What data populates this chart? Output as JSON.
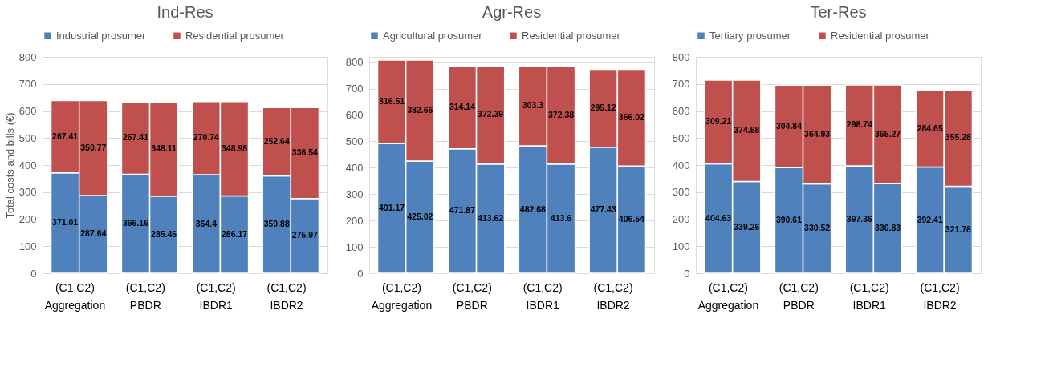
{
  "chart_data": [
    {
      "type": "bar",
      "stacked": true,
      "title": "Ind-Res",
      "ylabel": "Total costs and bills (€)",
      "categories": [
        "(C1,C2)\nAggregation",
        null,
        "(C1,C2)\nPBDR",
        null,
        "(C1,C2)\nIBDR1",
        null,
        "(C1,C2)\nIBDR2",
        null
      ],
      "series": [
        {
          "name": "Industrial prosumer",
          "color": "#4f81bd",
          "values": [
            371.01,
            287.64,
            366.16,
            285.46,
            364.4,
            286.17,
            359.88,
            275.97
          ]
        },
        {
          "name": "Residential prosumer",
          "color": "#c0504d",
          "values": [
            267.41,
            350.77,
            267.41,
            348.11,
            270.74,
            348.98,
            252.64,
            336.54
          ]
        }
      ],
      "ylim": [
        0,
        800
      ],
      "yticks": [
        0,
        100,
        200,
        300,
        400,
        500,
        600,
        700,
        800
      ],
      "grid": "y",
      "legend": "top",
      "data_labels": true
    },
    {
      "type": "bar",
      "stacked": true,
      "title": "Agr-Res",
      "categories": [
        "(C1,C2)\nAggregation",
        null,
        "(C1,C2)\nPBDR",
        null,
        "(C1,C2)\nIBDR1",
        null,
        "(C1,C2)\nIBDR2",
        null
      ],
      "series": [
        {
          "name": "Agricultural prosumer",
          "color": "#4f81bd",
          "values": [
            491.17,
            425.02,
            471.87,
            413.62,
            482.68,
            413.6,
            477.43,
            406.54
          ]
        },
        {
          "name": "Residential prosumer",
          "color": "#c0504d",
          "values": [
            316.51,
            382.66,
            314.14,
            372.39,
            303.3,
            372.38,
            295.12,
            366.02
          ]
        }
      ],
      "ylim": [
        0,
        820
      ],
      "yticks": [
        0,
        100,
        200,
        300,
        400,
        500,
        600,
        700,
        800
      ],
      "grid": "y",
      "legend": "top",
      "data_labels": true
    },
    {
      "type": "bar",
      "stacked": true,
      "title": "Ter-Res",
      "categories": [
        "(C1,C2)\nAggregation",
        null,
        "(C1,C2)\nPBDR",
        null,
        "(C1,C2)\nIBDR1",
        null,
        "(C1,C2)\nIBDR2",
        null
      ],
      "series": [
        {
          "name": "Tertiary prosumer",
          "color": "#4f81bd",
          "values": [
            404.63,
            339.26,
            390.61,
            330.52,
            397.36,
            330.83,
            392.41,
            321.78
          ]
        },
        {
          "name": "Residential prosumer",
          "color": "#c0504d",
          "values": [
            309.21,
            374.58,
            304.84,
            364.93,
            298.74,
            365.27,
            284.65,
            355.28
          ]
        }
      ],
      "ylim": [
        0,
        800
      ],
      "yticks": [
        0,
        100,
        200,
        300,
        400,
        500,
        600,
        700,
        800
      ],
      "grid": "y",
      "legend": "top",
      "data_labels": true
    }
  ]
}
